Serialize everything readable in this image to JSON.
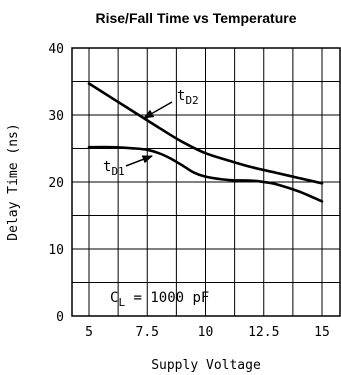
{
  "chart_data": {
    "type": "line",
    "title": "Rise/Fall Time vs Temperature",
    "xlabel": "Supply Voltage",
    "ylabel": "Delay Time (ns)",
    "xlim": [
      5,
      15
    ],
    "ylim": [
      0,
      40
    ],
    "x_ticks": [
      5,
      7.5,
      10,
      12.5,
      15
    ],
    "x_tick_labels": [
      "5",
      "7.5",
      "10",
      "12.5",
      "15"
    ],
    "y_ticks": [
      0,
      10,
      20,
      30,
      40
    ],
    "y_tick_labels": [
      "0",
      "10",
      "20",
      "30",
      "40"
    ],
    "grid": true,
    "series": [
      {
        "name": "tD2",
        "label_main": "t",
        "label_sub": "D2",
        "x": [
          5,
          6,
          7,
          8,
          9,
          10,
          11,
          12,
          13,
          14,
          15
        ],
        "values": [
          34.7,
          32.5,
          30.3,
          28.1,
          26.0,
          24.3,
          23.2,
          22.2,
          21.4,
          20.6,
          19.8
        ]
      },
      {
        "name": "tD1",
        "label_main": "t",
        "label_sub": "D1",
        "x": [
          5,
          6,
          7,
          7.5,
          8,
          8.5,
          9,
          9.5,
          10,
          11,
          12,
          12.5,
          13,
          14,
          15
        ],
        "values": [
          25.2,
          25.2,
          25.0,
          24.8,
          24.3,
          23.5,
          22.5,
          21.4,
          20.8,
          20.3,
          20.2,
          20.0,
          19.7,
          18.6,
          17.1
        ]
      }
    ],
    "annotation": {
      "main": "C",
      "sub": "L",
      "text": " = 1000 pF"
    }
  }
}
